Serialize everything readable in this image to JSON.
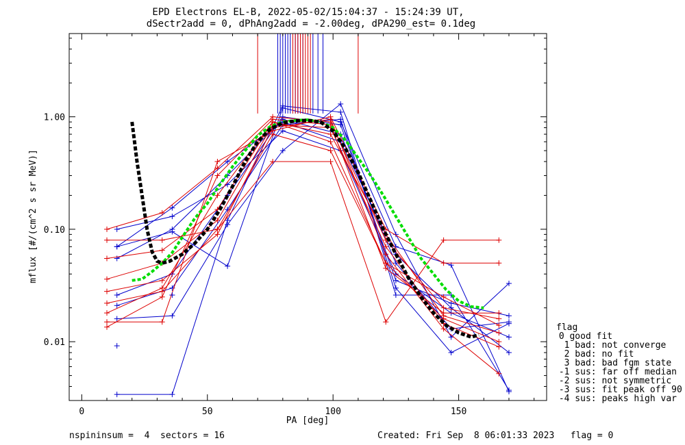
{
  "chart_data": {
    "type": "line",
    "title": "EPD Electrons EL-B, 2022-05-02/15:04:37 - 15:24:39 UT,",
    "subtitle": "dSectr2add = 0, dPhAng2add = -2.00deg, dPA290_est=   0.1deg",
    "xlabel": "PA [deg]",
    "ylabel": "mflux [#/(cm^2 s sr MeV)]",
    "xlim": [
      -5,
      185
    ],
    "ylim": [
      0.003,
      5.5
    ],
    "yscale": "log",
    "x_ticks": [
      {
        "value": 0,
        "label": "0"
      },
      {
        "value": 50,
        "label": "50"
      },
      {
        "value": 100,
        "label": "100"
      },
      {
        "value": 150,
        "label": "150"
      }
    ],
    "y_ticks": [
      {
        "value": 0.01,
        "label": "0.01"
      },
      {
        "value": 0.1,
        "label": "0.10"
      },
      {
        "value": 1.0,
        "label": "1.00"
      }
    ],
    "colors": {
      "blue": "#0000cc",
      "red": "#dd0000",
      "green": "#00dd00",
      "black": "#000000"
    },
    "series": [
      {
        "color": "blue",
        "x": [
          14,
          36,
          58,
          80,
          103,
          125,
          147,
          170
        ],
        "y": [
          0.07,
          0.095,
          0.047,
          1.2,
          0.9,
          0.07,
          0.048,
          0.0036
        ]
      },
      {
        "color": "blue",
        "x": [
          14,
          36,
          58,
          80,
          103,
          125,
          147,
          170
        ],
        "y": [
          0.0034,
          0.0034,
          0.12,
          1.25,
          1.1,
          0.026,
          0.026,
          0.0037
        ]
      },
      {
        "color": "blue",
        "x": [
          14,
          36,
          58,
          80,
          103,
          125,
          147,
          170
        ],
        "y": [
          0.016,
          0.017,
          0.11,
          0.5,
          1.3,
          0.09,
          0.011,
          0.033
        ]
      },
      {
        "color": "blue",
        "x": [
          14,
          36,
          58,
          80,
          103,
          125,
          147,
          170
        ],
        "y": [
          0.07,
          0.155,
          0.4,
          0.9,
          0.6,
          0.06,
          0.02,
          0.008
        ]
      },
      {
        "color": "blue",
        "x": [
          14,
          36,
          58,
          80,
          103,
          125,
          147,
          170
        ],
        "y": [
          0.055,
          0.1,
          0.3,
          0.95,
          0.7,
          0.05,
          0.013,
          0.015
        ]
      },
      {
        "color": "blue",
        "x": [
          14,
          36,
          58,
          80,
          103,
          125,
          147,
          170
        ],
        "y": [
          0.026,
          0.04,
          0.2,
          1.0,
          0.85,
          0.035,
          0.022,
          0.017
        ]
      },
      {
        "color": "blue",
        "x": [
          14,
          36,
          58,
          80,
          103,
          125,
          147,
          170
        ],
        "y": [
          0.1,
          0.13,
          0.25,
          0.75,
          0.5,
          0.04,
          0.018,
          0.011
        ]
      },
      {
        "color": "blue",
        "x": [
          14,
          36,
          58,
          80,
          103,
          125,
          147,
          170
        ],
        "y": [
          0.021,
          0.03,
          0.15,
          0.85,
          0.95,
          0.03,
          0.008,
          0.0145
        ]
      },
      {
        "color": "red",
        "x": [
          10,
          32,
          54,
          76,
          99,
          121,
          144,
          166
        ],
        "y": [
          0.08,
          0.08,
          0.1,
          0.4,
          0.4,
          0.015,
          0.08,
          0.08
        ]
      },
      {
        "color": "red",
        "x": [
          10,
          32,
          54,
          76,
          99,
          121,
          144,
          166
        ],
        "y": [
          0.015,
          0.015,
          0.4,
          0.75,
          1.0,
          0.1,
          0.05,
          0.05
        ]
      },
      {
        "color": "red",
        "x": [
          10,
          32,
          54,
          76,
          99,
          121,
          144,
          166
        ],
        "y": [
          0.1,
          0.14,
          0.35,
          1.0,
          0.9,
          0.08,
          0.02,
          0.016
        ]
      },
      {
        "color": "red",
        "x": [
          10,
          32,
          54,
          76,
          99,
          121,
          144,
          166
        ],
        "y": [
          0.055,
          0.065,
          0.15,
          0.9,
          0.7,
          0.09,
          0.017,
          0.012
        ]
      },
      {
        "color": "red",
        "x": [
          10,
          32,
          54,
          76,
          99,
          121,
          144,
          166
        ],
        "y": [
          0.036,
          0.05,
          0.12,
          0.85,
          0.8,
          0.07,
          0.0145,
          0.009
        ]
      },
      {
        "color": "red",
        "x": [
          10,
          32,
          54,
          76,
          99,
          121,
          144,
          166
        ],
        "y": [
          0.028,
          0.035,
          0.09,
          0.8,
          0.95,
          0.06,
          0.013,
          0.0052
        ]
      },
      {
        "color": "red",
        "x": [
          10,
          32,
          54,
          76,
          99,
          121,
          144,
          166
        ],
        "y": [
          0.022,
          0.028,
          0.1,
          0.7,
          0.5,
          0.05,
          0.016,
          0.01
        ]
      },
      {
        "color": "red",
        "x": [
          10,
          32,
          54,
          76,
          99,
          121,
          144,
          166
        ],
        "y": [
          0.018,
          0.03,
          0.2,
          0.9,
          0.6,
          0.05,
          0.025,
          0.014
        ]
      },
      {
        "color": "red",
        "x": [
          10,
          32,
          54,
          76,
          99,
          121,
          144,
          166
        ],
        "y": [
          0.0135,
          0.025,
          0.3,
          0.95,
          0.85,
          0.045,
          0.018,
          0.018
        ]
      }
    ],
    "isolated_points": [
      {
        "color": "blue",
        "x": 14,
        "y": 0.0092
      },
      {
        "color": "blue",
        "x": 36,
        "y": 0.026
      }
    ],
    "green_fit": {
      "x": [
        20,
        24,
        28,
        32,
        36,
        40,
        45,
        50,
        55,
        60,
        65,
        70,
        75,
        80,
        85,
        90,
        95,
        100,
        105,
        110,
        115,
        120,
        125,
        130,
        135,
        140,
        145,
        150,
        155,
        160
      ],
      "y": [
        0.035,
        0.036,
        0.042,
        0.05,
        0.062,
        0.085,
        0.125,
        0.17,
        0.25,
        0.36,
        0.5,
        0.68,
        0.82,
        0.9,
        0.93,
        0.94,
        0.9,
        0.8,
        0.62,
        0.43,
        0.3,
        0.2,
        0.13,
        0.085,
        0.055,
        0.04,
        0.029,
        0.023,
        0.0205,
        0.02
      ]
    },
    "black_fit": {
      "x": [
        20,
        21,
        22,
        24,
        26,
        28,
        30,
        32,
        35,
        40,
        45,
        50,
        55,
        60,
        65,
        70,
        75,
        80,
        85,
        90,
        95,
        100,
        105,
        110,
        115,
        120,
        125,
        130,
        135,
        140,
        145,
        150,
        155,
        158
      ],
      "y": [
        0.9,
        0.6,
        0.4,
        0.2,
        0.1,
        0.063,
        0.052,
        0.05,
        0.052,
        0.06,
        0.075,
        0.1,
        0.15,
        0.24,
        0.4,
        0.6,
        0.78,
        0.88,
        0.92,
        0.93,
        0.9,
        0.75,
        0.52,
        0.32,
        0.18,
        0.1,
        0.06,
        0.037,
        0.025,
        0.018,
        0.014,
        0.012,
        0.011,
        0.0115
      ]
    },
    "vertical_lines": {
      "y_low": 1.07,
      "y_high": 5.5,
      "blue_x": [
        78,
        79,
        80,
        81,
        82,
        83,
        84,
        85,
        86,
        88,
        90,
        92,
        94,
        96
      ],
      "red_x": [
        70,
        84,
        85,
        86,
        87,
        88,
        89,
        90,
        91,
        110
      ]
    },
    "legend": {
      "position": "right",
      "title": "flag",
      "entries": [
        " 0 good fit",
        "  1 bad: not converge",
        "  2 bad: no fit",
        "  3 bad: bad fgm state",
        " -1 sus: far off median",
        " -2 sus: not symmetric",
        " -3 sus: fit peak off 90",
        " -4 sus: peaks high var"
      ]
    },
    "footer": {
      "left": "nspininsum =  4  sectors = 16",
      "right": "Created: Fri Sep  8 06:01:33 2023   flag = 0"
    }
  }
}
